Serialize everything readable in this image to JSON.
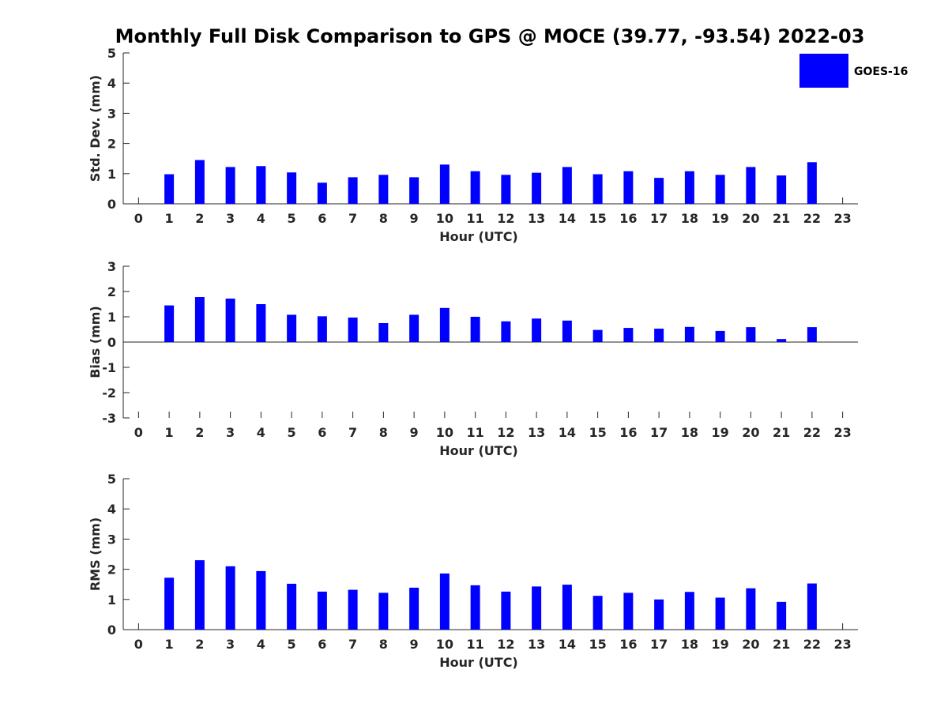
{
  "chart_title": "Monthly Full Disk Comparison to GPS @ MOCE (39.77, -93.54) 2022-03",
  "legend": {
    "label": "GOES-16",
    "color": "#0000ff",
    "placement": "top-right"
  },
  "chart_data": [
    {
      "type": "bar",
      "ylabel": "Std. Dev. (mm)",
      "xlabel": "Hour (UTC)",
      "ylim": [
        0,
        5
      ],
      "yticks": [
        0,
        1,
        2,
        3,
        4,
        5
      ],
      "xlim": [
        -0.5,
        23.5
      ],
      "xticks": [
        0,
        1,
        2,
        3,
        4,
        5,
        6,
        7,
        8,
        9,
        10,
        11,
        12,
        13,
        14,
        15,
        16,
        17,
        18,
        19,
        20,
        21,
        22,
        23
      ],
      "x": [
        1,
        2,
        3,
        4,
        5,
        6,
        7,
        8,
        9,
        10,
        11,
        12,
        13,
        14,
        15,
        16,
        17,
        18,
        19,
        20,
        21,
        22
      ],
      "series": [
        {
          "name": "GOES-16",
          "color": "#0000ff",
          "values": [
            0.98,
            1.45,
            1.22,
            1.25,
            1.04,
            0.7,
            0.88,
            0.96,
            0.88,
            1.3,
            1.08,
            0.96,
            1.03,
            1.22,
            0.98,
            1.08,
            0.86,
            1.08,
            0.96,
            1.22,
            0.94,
            1.38
          ]
        }
      ]
    },
    {
      "type": "bar",
      "ylabel": "Bias (mm)",
      "xlabel": "Hour (UTC)",
      "ylim": [
        -3,
        3
      ],
      "yticks": [
        -3,
        -2,
        -1,
        0,
        1,
        2,
        3
      ],
      "xlim": [
        -0.5,
        23.5
      ],
      "xticks": [
        0,
        1,
        2,
        3,
        4,
        5,
        6,
        7,
        8,
        9,
        10,
        11,
        12,
        13,
        14,
        15,
        16,
        17,
        18,
        19,
        20,
        21,
        22,
        23
      ],
      "x": [
        1,
        2,
        3,
        4,
        5,
        6,
        7,
        8,
        9,
        10,
        11,
        12,
        13,
        14,
        15,
        16,
        17,
        18,
        19,
        20,
        21,
        22
      ],
      "series": [
        {
          "name": "GOES-16",
          "color": "#0000ff",
          "values": [
            1.45,
            1.78,
            1.72,
            1.5,
            1.08,
            1.02,
            0.97,
            0.75,
            1.08,
            1.35,
            1.0,
            0.82,
            0.93,
            0.85,
            0.48,
            0.56,
            0.53,
            0.6,
            0.44,
            0.59,
            0.12,
            0.59
          ]
        }
      ]
    },
    {
      "type": "bar",
      "ylabel": "RMS (mm)",
      "xlabel": "Hour (UTC)",
      "ylim": [
        0,
        5
      ],
      "yticks": [
        0,
        1,
        2,
        3,
        4,
        5
      ],
      "xlim": [
        -0.5,
        23.5
      ],
      "xticks": [
        0,
        1,
        2,
        3,
        4,
        5,
        6,
        7,
        8,
        9,
        10,
        11,
        12,
        13,
        14,
        15,
        16,
        17,
        18,
        19,
        20,
        21,
        22,
        23
      ],
      "x": [
        1,
        2,
        3,
        4,
        5,
        6,
        7,
        8,
        9,
        10,
        11,
        12,
        13,
        14,
        15,
        16,
        17,
        18,
        19,
        20,
        21,
        22
      ],
      "series": [
        {
          "name": "GOES-16",
          "color": "#0000ff",
          "values": [
            1.72,
            2.3,
            2.1,
            1.94,
            1.52,
            1.26,
            1.32,
            1.22,
            1.39,
            1.86,
            1.47,
            1.26,
            1.43,
            1.49,
            1.12,
            1.22,
            1.0,
            1.25,
            1.06,
            1.37,
            0.92,
            1.53
          ]
        }
      ]
    }
  ]
}
